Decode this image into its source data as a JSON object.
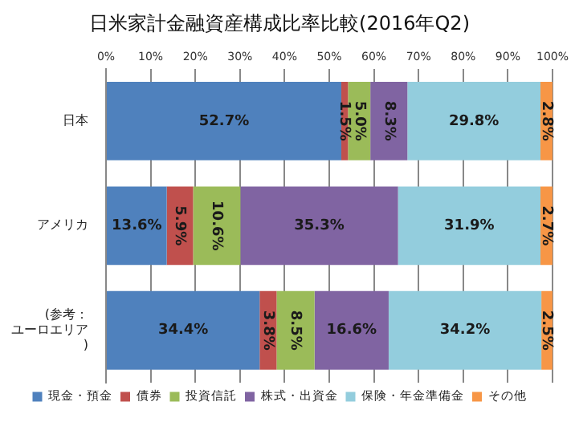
{
  "chart_data": {
    "type": "bar",
    "orientation": "horizontal",
    "stacked": true,
    "title": "日米家計金融資産構成比率比較(2016年Q2)",
    "categories": [
      "日本",
      "アメリカ",
      "(参考：ユーロエリア)"
    ],
    "series": [
      {
        "name": "現金・預金",
        "color": "#4f81bd",
        "values": [
          52.7,
          13.6,
          34.4
        ],
        "value_labels": [
          "52.7%",
          "13.6%",
          "34.4%"
        ]
      },
      {
        "name": "債券",
        "color": "#c0504d",
        "values": [
          1.5,
          5.9,
          3.8
        ],
        "value_labels": [
          "1.5%",
          "5.9%",
          "3.8%"
        ]
      },
      {
        "name": "投資信託",
        "color": "#9bbb59",
        "values": [
          5.0,
          10.6,
          8.5
        ],
        "value_labels": [
          "5.0%",
          "10.6%",
          "8.5%"
        ]
      },
      {
        "name": "株式・出資金",
        "color": "#8064a2",
        "values": [
          8.3,
          35.3,
          16.6
        ],
        "value_labels": [
          "8.3%",
          "35.3%",
          "16.6%"
        ]
      },
      {
        "name": "保険・年金準備金",
        "color": "#93cddd",
        "values": [
          29.8,
          31.9,
          34.2
        ],
        "value_labels": [
          "29.8%",
          "31.9%",
          "34.2%"
        ]
      },
      {
        "name": "その他",
        "color": "#f79646",
        "values": [
          2.8,
          2.7,
          2.5
        ],
        "value_labels": [
          "2.8%",
          "2.7%",
          "2.5%"
        ]
      }
    ],
    "xlim": [
      0,
      100
    ],
    "xticks": [
      {
        "value": 0,
        "label": "0%"
      },
      {
        "value": 10,
        "label": "10%"
      },
      {
        "value": 20,
        "label": "20%"
      },
      {
        "value": 30,
        "label": "30%"
      },
      {
        "value": 40,
        "label": "40%"
      },
      {
        "value": 50,
        "label": "50%"
      },
      {
        "value": 60,
        "label": "60%"
      },
      {
        "value": 70,
        "label": "70%"
      },
      {
        "value": 80,
        "label": "80%"
      },
      {
        "value": 90,
        "label": "90%"
      },
      {
        "value": 100,
        "label": "100%"
      }
    ],
    "grid": "x",
    "legend": "bottom"
  }
}
